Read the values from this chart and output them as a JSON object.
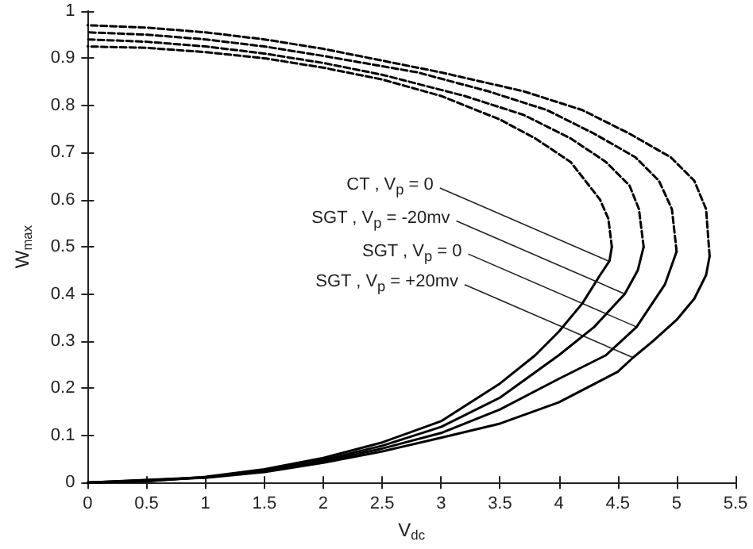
{
  "chart_data": {
    "type": "line",
    "xlabel": "V$_{dc}$",
    "ylabel": "W$_{max}$",
    "xlim": [
      0,
      5.5
    ],
    "ylim": [
      0,
      1
    ],
    "xticks": [
      0,
      0.5,
      1,
      1.5,
      2,
      2.5,
      3,
      3.5,
      4,
      4.5,
      5,
      5.5
    ],
    "yticks": [
      0,
      0.1,
      0.2,
      0.3,
      0.4,
      0.5,
      0.6,
      0.7,
      0.8,
      0.9,
      1
    ],
    "grid": false,
    "marker": "none",
    "series": [
      {
        "color": "#000000",
        "line_style": "solid",
        "x": [
          0,
          0.5,
          1,
          1.5,
          2,
          2.5,
          3,
          3.5,
          3.8,
          4,
          4.2,
          4.35,
          4.43,
          4.45
        ],
        "values": [
          0,
          0.003,
          0.012,
          0.028,
          0.052,
          0.085,
          0.13,
          0.21,
          0.27,
          0.32,
          0.38,
          0.44,
          0.47,
          0.5
        ]
      },
      {
        "color": "#000000",
        "line_style": "dashed",
        "x": [
          4.45,
          4.42,
          4.35,
          4.1,
          3.8,
          3.5,
          3,
          2.5,
          2,
          1.5,
          1,
          0.5,
          0
        ],
        "values": [
          0.5,
          0.56,
          0.6,
          0.68,
          0.73,
          0.77,
          0.82,
          0.855,
          0.88,
          0.9,
          0.913,
          0.922,
          0.925
        ]
      },
      {
        "color": "#000000",
        "line_style": "solid",
        "x": [
          0,
          0.5,
          1,
          1.5,
          2,
          2.5,
          3,
          3.5,
          4,
          4.3,
          4.56,
          4.67,
          4.72
        ],
        "values": [
          0,
          0.003,
          0.011,
          0.026,
          0.048,
          0.078,
          0.118,
          0.18,
          0.27,
          0.33,
          0.4,
          0.45,
          0.5
        ]
      },
      {
        "color": "#000000",
        "line_style": "dashed",
        "x": [
          4.72,
          4.68,
          4.6,
          4.4,
          4.1,
          3.7,
          3.2,
          2.5,
          2,
          1.5,
          1,
          0.5,
          0
        ],
        "values": [
          0.5,
          0.58,
          0.63,
          0.68,
          0.73,
          0.78,
          0.82,
          0.865,
          0.89,
          0.91,
          0.925,
          0.935,
          0.94
        ]
      },
      {
        "color": "#000000",
        "line_style": "solid",
        "x": [
          0,
          1,
          1.5,
          2,
          2.5,
          3,
          3.5,
          4,
          4.4,
          4.66,
          4.9,
          5
        ],
        "values": [
          0,
          0.011,
          0.024,
          0.045,
          0.072,
          0.105,
          0.155,
          0.22,
          0.27,
          0.33,
          0.42,
          0.49
        ]
      },
      {
        "color": "#000000",
        "line_style": "dashed",
        "x": [
          5,
          4.96,
          4.85,
          4.65,
          4.3,
          3.9,
          3.4,
          2.8,
          2,
          1.5,
          1,
          0.5,
          0
        ],
        "values": [
          0.49,
          0.58,
          0.64,
          0.69,
          0.74,
          0.79,
          0.83,
          0.87,
          0.905,
          0.925,
          0.94,
          0.95,
          0.955
        ]
      },
      {
        "color": "#000000",
        "line_style": "solid",
        "x": [
          0,
          1,
          1.5,
          2,
          2.5,
          3,
          3.5,
          4,
          4.5,
          4.63,
          4.8,
          5,
          5.15,
          5.25,
          5.28
        ],
        "values": [
          0,
          0.01,
          0.022,
          0.042,
          0.066,
          0.095,
          0.125,
          0.17,
          0.235,
          0.265,
          0.3,
          0.345,
          0.39,
          0.44,
          0.48
        ]
      },
      {
        "color": "#000000",
        "line_style": "dashed",
        "x": [
          5.28,
          5.25,
          5.15,
          4.95,
          4.6,
          4.2,
          3.7,
          3,
          2.5,
          2,
          1.5,
          1,
          0.5,
          0
        ],
        "values": [
          0.48,
          0.58,
          0.64,
          0.69,
          0.74,
          0.79,
          0.83,
          0.87,
          0.895,
          0.92,
          0.94,
          0.955,
          0.965,
          0.97
        ]
      }
    ],
    "annotations": [
      {
        "text": "CT , V$_{p}$ = 0",
        "x": 4.42,
        "y": 0.47
      },
      {
        "text": "SGT , V$_{p}$ = -20mv",
        "x": 4.56,
        "y": 0.4
      },
      {
        "text": "SGT , V$_{p}$ = 0",
        "x": 4.66,
        "y": 0.33
      },
      {
        "text": "SGT , V$_{p}$ = +20mv",
        "x": 4.63,
        "y": 0.265
      }
    ]
  }
}
